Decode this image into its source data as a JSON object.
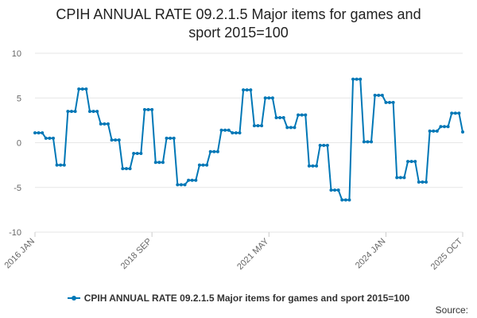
{
  "colors": {
    "series": "#0077b6",
    "grid": "#e6e6e6",
    "axis_text": "#666666",
    "title": "#222222"
  },
  "chart_data": {
    "type": "line",
    "title": "CPIH ANNUAL RATE 09.2.1.5 Major items for games and sport 2015=100",
    "title_lines": [
      "CPIH ANNUAL RATE 09.2.1.5 Major items for games and",
      "sport 2015=100"
    ],
    "xlabel": "",
    "ylabel": "",
    "ylim": [
      -10,
      10
    ],
    "yticks": [
      10,
      5,
      0,
      -5,
      -10
    ],
    "grid": true,
    "legend_position": "bottom",
    "x_tick_labels": [
      {
        "label": "2016 JAN",
        "index": 0
      },
      {
        "label": "2018 SEP",
        "index": 32
      },
      {
        "label": "2021 MAY",
        "index": 64
      },
      {
        "label": "2024 JAN",
        "index": 96
      },
      {
        "label": "2025 OCT",
        "index": 117
      }
    ],
    "series": [
      {
        "name": "CPIH ANNUAL RATE 09.2.1.5 Major items for games and sport 2015=100",
        "values": [
          1.1,
          1.1,
          1.1,
          0.5,
          0.5,
          0.5,
          -2.5,
          -2.5,
          -2.5,
          3.5,
          3.5,
          3.5,
          6.0,
          6.0,
          6.0,
          3.5,
          3.5,
          3.5,
          2.1,
          2.1,
          2.1,
          0.3,
          0.3,
          0.3,
          -2.9,
          -2.9,
          -2.9,
          -1.2,
          -1.2,
          -1.2,
          3.7,
          3.7,
          3.7,
          -2.2,
          -2.2,
          -2.2,
          0.5,
          0.5,
          0.5,
          -4.7,
          -4.7,
          -4.7,
          -4.2,
          -4.2,
          -4.2,
          -2.5,
          -2.5,
          -2.5,
          -1.0,
          -1.0,
          -1.0,
          1.4,
          1.4,
          1.4,
          1.1,
          1.1,
          1.1,
          5.9,
          5.9,
          5.9,
          1.9,
          1.9,
          1.9,
          5.0,
          5.0,
          5.0,
          2.8,
          2.8,
          2.8,
          1.7,
          1.7,
          1.7,
          3.1,
          3.1,
          3.1,
          -2.6,
          -2.6,
          -2.6,
          -0.3,
          -0.3,
          -0.3,
          -5.3,
          -5.3,
          -5.3,
          -6.4,
          -6.4,
          -6.4,
          7.1,
          7.1,
          7.1,
          0.1,
          0.1,
          0.1,
          5.3,
          5.3,
          5.3,
          4.5,
          4.5,
          4.5,
          -3.9,
          -3.9,
          -3.9,
          -2.1,
          -2.1,
          -2.1,
          -4.4,
          -4.4,
          -4.4,
          1.3,
          1.3,
          1.3,
          1.8,
          1.8,
          1.8,
          3.3,
          3.3,
          3.3,
          1.2
        ]
      }
    ]
  },
  "source_label": "Source:"
}
